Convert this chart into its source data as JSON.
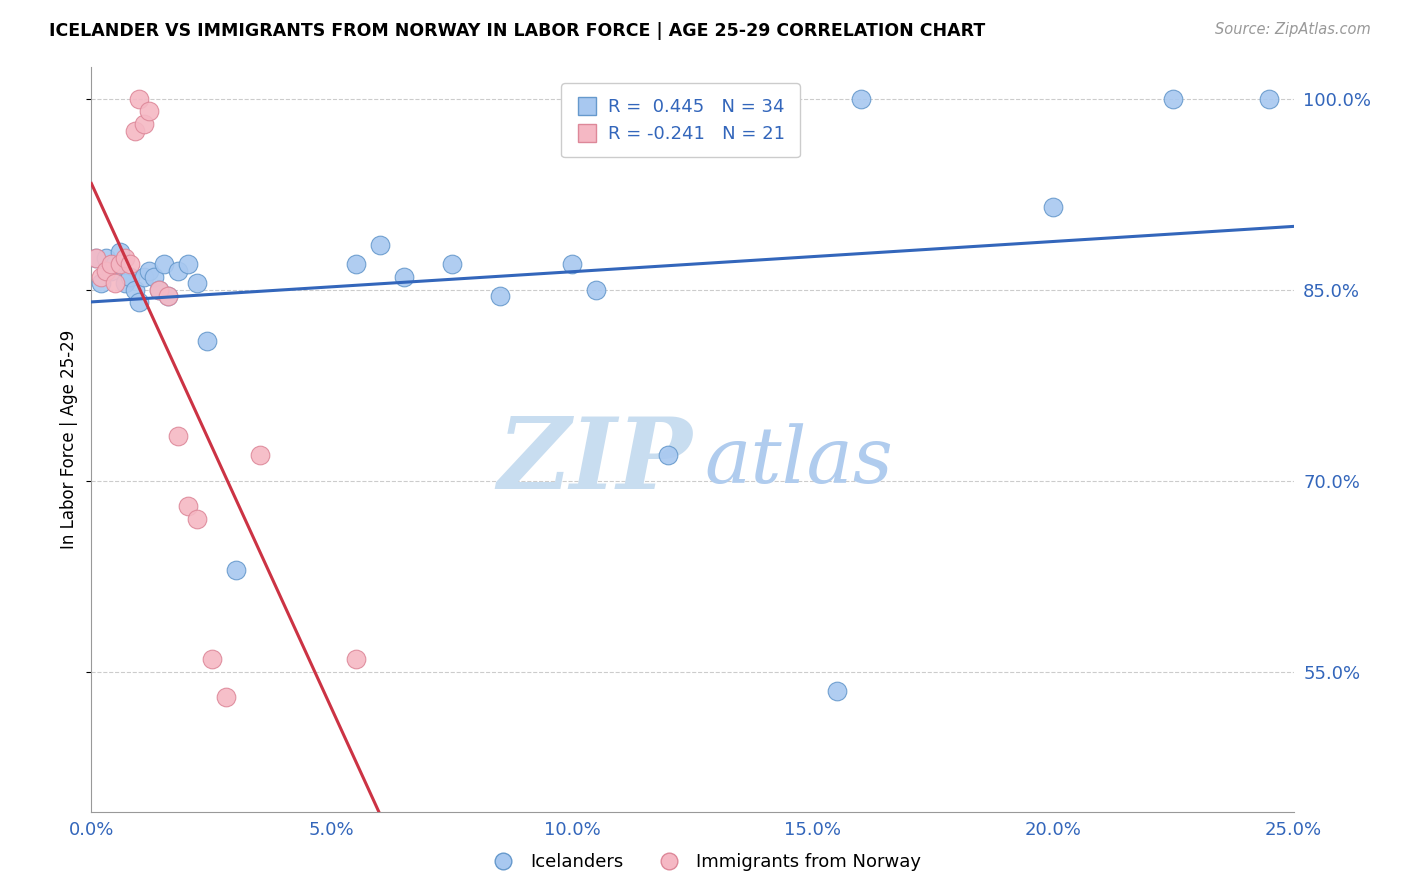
{
  "title": "ICELANDER VS IMMIGRANTS FROM NORWAY IN LABOR FORCE | AGE 25-29 CORRELATION CHART",
  "source": "Source: ZipAtlas.com",
  "ylabel": "In Labor Force | Age 25-29",
  "xlim": [
    0.0,
    0.25
  ],
  "ylim": [
    0.44,
    1.025
  ],
  "yticks": [
    0.55,
    0.7,
    0.85,
    1.0
  ],
  "xticks": [
    0.0,
    0.05,
    0.1,
    0.15,
    0.2,
    0.25
  ],
  "blue_color": "#a8c8f0",
  "pink_color": "#f5b8c4",
  "blue_edge": "#6699cc",
  "pink_edge": "#dd8899",
  "trend_blue": "#3366bb",
  "trend_pink": "#cc3344",
  "diagonal_color": "#e8b0bb",
  "grid_color": "#cccccc",
  "label_color": "#3366bb",
  "axis_color": "#999999",
  "R_blue": 0.445,
  "N_blue": 34,
  "R_pink": -0.241,
  "N_pink": 21,
  "legend_labels": [
    "Icelanders",
    "Immigrants from Norway"
  ],
  "blue_points_x": [
    0.001,
    0.002,
    0.003,
    0.004,
    0.005,
    0.006,
    0.007,
    0.008,
    0.009,
    0.01,
    0.011,
    0.012,
    0.013,
    0.014,
    0.015,
    0.016,
    0.018,
    0.02,
    0.022,
    0.024,
    0.03,
    0.055,
    0.06,
    0.065,
    0.075,
    0.085,
    0.1,
    0.105,
    0.12,
    0.155,
    0.16,
    0.2,
    0.225,
    0.245
  ],
  "blue_points_y": [
    0.875,
    0.855,
    0.875,
    0.865,
    0.87,
    0.88,
    0.855,
    0.86,
    0.85,
    0.84,
    0.86,
    0.865,
    0.86,
    0.85,
    0.87,
    0.845,
    0.865,
    0.87,
    0.855,
    0.81,
    0.63,
    0.87,
    0.885,
    0.86,
    0.87,
    0.845,
    0.87,
    0.85,
    0.72,
    0.535,
    1.0,
    0.915,
    1.0,
    1.0
  ],
  "pink_points_x": [
    0.001,
    0.002,
    0.003,
    0.004,
    0.005,
    0.006,
    0.007,
    0.008,
    0.009,
    0.01,
    0.011,
    0.012,
    0.014,
    0.016,
    0.018,
    0.02,
    0.022,
    0.025,
    0.028,
    0.035,
    0.055
  ],
  "pink_points_y": [
    0.875,
    0.86,
    0.865,
    0.87,
    0.855,
    0.87,
    0.875,
    0.87,
    0.975,
    1.0,
    0.98,
    0.99,
    0.85,
    0.845,
    0.735,
    0.68,
    0.67,
    0.56,
    0.53,
    0.72,
    0.56
  ],
  "watermark_zip": "ZIP",
  "watermark_atlas": "atlas",
  "watermark_zip_color": "#c8ddf0",
  "watermark_atlas_color": "#b0ccee"
}
